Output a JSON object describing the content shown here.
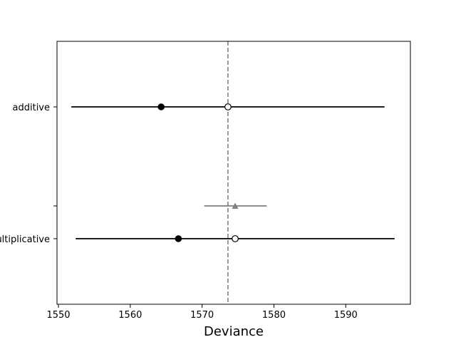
{
  "chart_data": {
    "type": "scatter",
    "title": "",
    "xlabel": "Deviance",
    "ylabel": "",
    "xlim": [
      1549.8,
      1599.0
    ],
    "x_ticks": [
      "1550",
      "1560",
      "1570",
      "1580",
      "1590"
    ],
    "x_tick_values": [
      1550,
      1560,
      1570,
      1580,
      1590
    ],
    "y_categories": [
      "additive",
      "",
      "multiplicative"
    ],
    "reference_line": 1573.6,
    "legend": "none",
    "grid": false,
    "models": [
      {
        "label": "additive",
        "in_sample_deviance": 1564.3,
        "waic": 1573.6,
        "interval": [
          1551.8,
          1595.4
        ]
      },
      {
        "label": "multiplicative",
        "in_sample_deviance": 1566.7,
        "waic": 1574.6,
        "interval": [
          1552.4,
          1596.8
        ]
      }
    ],
    "difference": {
      "waic": 1574.6,
      "interval": [
        1570.3,
        1579.0
      ]
    },
    "colors": {
      "model_marker": "#000000",
      "model_interval": "#000000",
      "difference": "#808080",
      "reference_line": "#808080"
    }
  }
}
